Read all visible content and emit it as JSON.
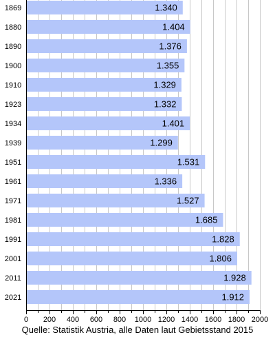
{
  "chart_data": {
    "type": "bar",
    "orientation": "horizontal",
    "categories": [
      "1869",
      "1880",
      "1890",
      "1900",
      "1910",
      "1923",
      "1934",
      "1939",
      "1951",
      "1961",
      "1971",
      "1981",
      "1991",
      "2001",
      "2011",
      "2021"
    ],
    "values": [
      1340,
      1404,
      1376,
      1355,
      1329,
      1332,
      1401,
      1299,
      1531,
      1336,
      1527,
      1685,
      1828,
      1806,
      1928,
      1912
    ],
    "data_labels": [
      "1.340",
      "1.404",
      "1.376",
      "1.355",
      "1.329",
      "1.332",
      "1.401",
      "1.299",
      "1.531",
      "1.336",
      "1.527",
      "1.685",
      "1.828",
      "1.806",
      "1.928",
      "1.912"
    ],
    "x_ticks": [
      "0",
      "200",
      "400",
      "600",
      "800",
      "1000",
      "1200",
      "1400",
      "1600",
      "1800",
      "2000"
    ],
    "xlim": [
      0,
      2000
    ],
    "grid": true,
    "legend": "none",
    "bar_color": "#b4c6fa",
    "grid_color": "#c8c8c8",
    "source": "Quelle: Statistik Austria, alle Daten laut Gebietsstand 2015"
  }
}
